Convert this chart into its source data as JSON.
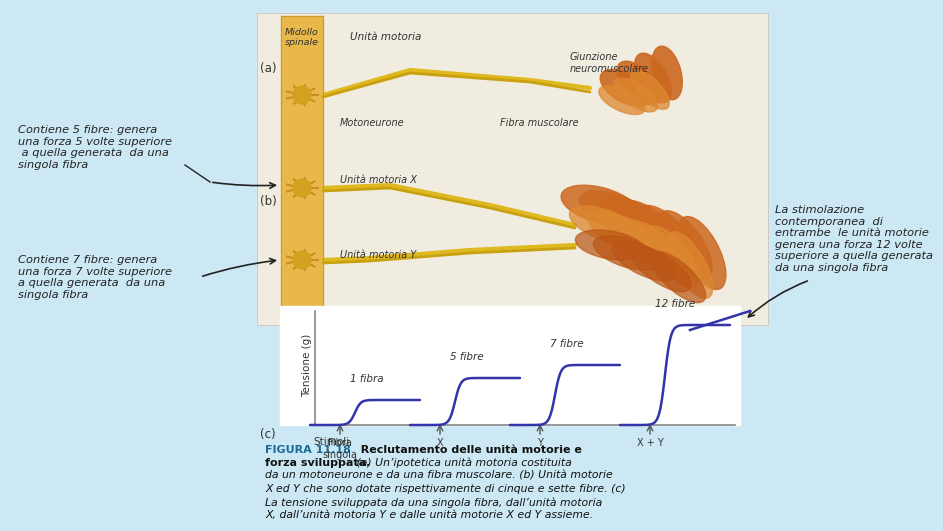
{
  "background_color": "#cce8f4",
  "fig_width": 9.01,
  "fig_height": 5.11,
  "graph_line_color": "#3333aa",
  "illus_bg": "#f0ede0",
  "spine_color": "#e8b84a",
  "spine_edge": "#c89a30",
  "neuron_color": "#d4a020",
  "muscle_orange": "#cc6820",
  "muscle_light": "#dd8830",
  "axon_color": "#e0b820",
  "caption_title_color": "#1a6b9a",
  "text_color": "#222222",
  "arrow_color": "#222222",
  "left_annotation_1": "Contiene 5 fibre: genera\nuna forza 5 volte superiore\n a quella generata  da una\nsingola fibra",
  "left_annotation_2": "Contiene 7 fibre: genera\nuna forza 7 volte superiore\na quella generata  da una\nsingola fibra",
  "right_annotation": "La stimolazione\ncontemporanea  di\nentrambe  le unità motorie\ngenera una forza 12 volte\nsuperiore a quella generata\nda una singola fibra",
  "annotation_fontsize": 8.2,
  "caption_fontsize": 7.8
}
